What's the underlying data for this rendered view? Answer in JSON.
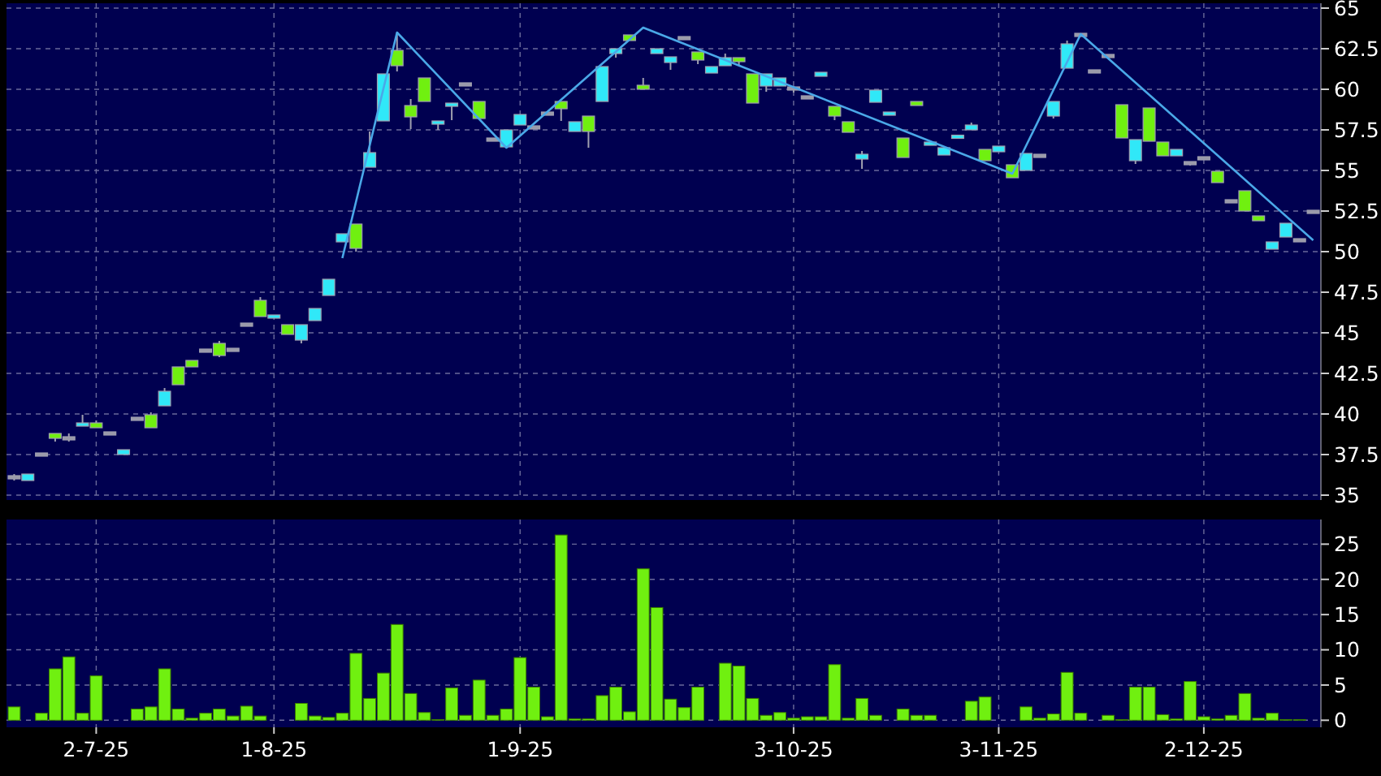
{
  "chart_data": [
    {
      "type": "candlestick",
      "categories": [
        null,
        null,
        null,
        null,
        null,
        null,
        null,
        null,
        null,
        null,
        null,
        null,
        null,
        null,
        null,
        null,
        null,
        null,
        null,
        null,
        null,
        null,
        null,
        null,
        null,
        null,
        null,
        null,
        null,
        null,
        null,
        null,
        null,
        null,
        null,
        null,
        null,
        null,
        null,
        null,
        null,
        null,
        null,
        null,
        null,
        null,
        null,
        null,
        null,
        null,
        null,
        null,
        null,
        null,
        null,
        null,
        null,
        null,
        null,
        null,
        null,
        null,
        null,
        null,
        null,
        null,
        null,
        null,
        null,
        null,
        null,
        null,
        null,
        null,
        null,
        null,
        null,
        null,
        null,
        null,
        null,
        null,
        null,
        null,
        null,
        null,
        null,
        null,
        null,
        null,
        null,
        null,
        null,
        null,
        null,
        null
      ],
      "ohlc": [
        [
          36.1,
          36.3,
          35.9,
          36.1
        ],
        [
          35.9,
          36.3,
          35.9,
          36.3
        ],
        [
          37.5,
          37.5,
          37.5,
          37.5
        ],
        [
          38.8,
          38.8,
          38.3,
          38.5
        ],
        [
          38.5,
          38.8,
          38.3,
          38.5
        ],
        [
          39.3,
          39.95,
          39.3,
          39.4
        ],
        [
          39.45,
          39.6,
          39.15,
          39.15
        ],
        [
          38.8,
          38.8,
          38.8,
          38.8
        ],
        [
          37.5,
          37.8,
          37.5,
          37.8
        ],
        [
          39.7,
          39.7,
          39.7,
          39.7
        ],
        [
          39.95,
          40.1,
          39.15,
          39.15
        ],
        [
          40.5,
          41.6,
          40.5,
          41.4
        ],
        [
          42.9,
          42.9,
          41.8,
          41.8
        ],
        [
          43.3,
          43.3,
          42.9,
          42.9
        ],
        [
          43.9,
          43.9,
          43.9,
          43.9
        ],
        [
          44.35,
          44.5,
          43.5,
          43.6
        ],
        [
          43.95,
          43.95,
          43.95,
          43.95
        ],
        [
          45.5,
          45.5,
          45.5,
          45.5
        ],
        [
          47,
          47.2,
          46,
          46
        ],
        [
          45.9,
          46.1,
          45.9,
          46.1
        ],
        [
          45.5,
          45.5,
          44.9,
          44.9
        ],
        [
          44.55,
          45.5,
          44.35,
          45.5
        ],
        [
          45.75,
          46.5,
          45.75,
          46.5
        ],
        [
          47.3,
          48.3,
          47.3,
          48.3
        ],
        [
          50.6,
          51.1,
          50.6,
          51.1
        ],
        [
          51.7,
          51.7,
          50,
          50.2
        ],
        [
          55.2,
          57.4,
          55.2,
          56.1
        ],
        [
          58.05,
          60.95,
          58.05,
          60.95
        ],
        [
          62.4,
          63.5,
          61.1,
          61.45
        ],
        [
          59,
          59.4,
          57.55,
          58.3
        ],
        [
          60.7,
          60.7,
          59.25,
          59.25
        ],
        [
          57.9,
          58,
          57.5,
          58
        ],
        [
          58.95,
          59.15,
          58.1,
          59.15
        ],
        [
          60.3,
          60.3,
          60.3,
          60.3
        ],
        [
          59.25,
          59.25,
          58.2,
          58.2
        ],
        [
          56.9,
          56.9,
          56.9,
          56.9
        ],
        [
          56.45,
          57.5,
          56.45,
          57.5
        ],
        [
          57.8,
          58.45,
          57.8,
          58.45
        ],
        [
          57.65,
          57.65,
          57.65,
          57.65
        ],
        [
          58.5,
          58.5,
          58.5,
          58.5
        ],
        [
          59.25,
          59.25,
          58.05,
          58.8
        ],
        [
          57.4,
          58,
          57.4,
          58
        ],
        [
          58.35,
          58.35,
          56.4,
          57.4
        ],
        [
          59.25,
          61.4,
          59.25,
          61.4
        ],
        [
          62.2,
          62.5,
          61.95,
          62.5
        ],
        [
          63.35,
          63.35,
          63,
          63
        ],
        [
          60.25,
          60.7,
          60,
          60
        ],
        [
          62.2,
          62.5,
          62.2,
          62.5
        ],
        [
          61.65,
          62,
          61.2,
          62
        ],
        [
          63.15,
          63.15,
          63.15,
          63.15
        ],
        [
          62.3,
          62.3,
          61.55,
          61.8
        ],
        [
          61,
          61.4,
          61,
          61.4
        ],
        [
          61.45,
          62.2,
          61.45,
          61.95
        ],
        [
          61.95,
          61.95,
          61.5,
          61.7
        ],
        [
          60.95,
          60.95,
          59.15,
          59.15
        ],
        [
          60.2,
          60.95,
          59.85,
          60.95
        ],
        [
          60.2,
          60.7,
          60.2,
          60.7
        ],
        [
          60.05,
          60.05,
          59.8,
          60.05
        ],
        [
          59.5,
          59.5,
          59.5,
          59.5
        ],
        [
          60.8,
          61.05,
          60.8,
          61.05
        ],
        [
          58.95,
          58.95,
          58.1,
          58.35
        ],
        [
          58,
          58,
          57.35,
          57.35
        ],
        [
          55.7,
          56.2,
          55.1,
          56
        ],
        [
          59.2,
          59.95,
          59.2,
          59.95
        ],
        [
          58.4,
          58.6,
          58.4,
          58.6
        ],
        [
          57,
          57,
          55.8,
          55.8
        ],
        [
          59.25,
          59.25,
          59,
          59
        ],
        [
          56.6,
          56.7,
          56.6,
          56.7
        ],
        [
          55.95,
          56.4,
          55.95,
          56.4
        ],
        [
          57,
          57.15,
          57,
          57.15
        ],
        [
          57.5,
          57.95,
          57.5,
          57.8
        ],
        [
          56.3,
          56.3,
          55.6,
          55.6
        ],
        [
          56.15,
          56.5,
          56.15,
          56.5
        ],
        [
          55.35,
          55.35,
          54.55,
          54.55
        ],
        [
          55,
          56.05,
          55,
          56.05
        ],
        [
          55.9,
          55.9,
          55.9,
          55.9
        ],
        [
          58.35,
          59.25,
          58.2,
          59.25
        ],
        [
          61.3,
          63,
          61.3,
          62.8
        ],
        [
          63.35,
          63.35,
          63.35,
          63.35
        ],
        [
          61.1,
          61.1,
          61.1,
          61.1
        ],
        [
          62.05,
          62.05,
          62.05,
          62.05
        ],
        [
          59.05,
          59.05,
          57,
          57
        ],
        [
          55.6,
          56.9,
          55.4,
          56.9
        ],
        [
          58.85,
          58.85,
          56.8,
          56.8
        ],
        [
          56.75,
          56.75,
          55.9,
          55.9
        ],
        [
          55.9,
          56.3,
          55.9,
          56.3
        ],
        [
          55.45,
          55.45,
          55.3,
          55.45
        ],
        [
          55.75,
          55.75,
          55.75,
          55.75
        ],
        [
          54.95,
          54.95,
          54.25,
          54.25
        ],
        [
          53.1,
          53.1,
          53.1,
          53.1
        ],
        [
          53.75,
          53.75,
          52.5,
          52.5
        ],
        [
          52.2,
          52.2,
          51.9,
          51.9
        ],
        [
          50.15,
          50.6,
          50.15,
          50.6
        ],
        [
          50.9,
          51.75,
          50.9,
          51.75
        ],
        [
          50.7,
          50.7,
          50.7,
          50.7
        ],
        [
          52.45,
          52.45,
          52.45,
          52.45
        ]
      ],
      "colors": [
        "#9a9aaa",
        "#30e8f8",
        "#9a9aaa",
        "#70f010",
        "#9a9aaa",
        "#30e8f8",
        "#70f010",
        "#9a9aaa",
        "#30e8f8",
        "#9a9aaa",
        "#70f010",
        "#30e8f8",
        "#70f010",
        "#70f010",
        "#9a9aaa",
        "#70f010",
        "#9a9aaa",
        "#9a9aaa",
        "#70f010",
        "#30e8f8",
        "#70f010",
        "#30e8f8",
        "#30e8f8",
        "#30e8f8",
        "#30e8f8",
        "#70f010",
        "#30e8f8",
        "#30e8f8",
        "#70f010",
        "#70f010",
        "#70f010",
        "#30e8f8",
        "#30e8f8",
        "#9a9aaa",
        "#70f010",
        "#9a9aaa",
        "#30e8f8",
        "#30e8f8",
        "#9a9aaa",
        "#9a9aaa",
        "#70f010",
        "#30e8f8",
        "#70f010",
        "#30e8f8",
        "#30e8f8",
        "#70f010",
        "#70f010",
        "#30e8f8",
        "#30e8f8",
        "#9a9aaa",
        "#70f010",
        "#30e8f8",
        "#30e8f8",
        "#70f010",
        "#70f010",
        "#30e8f8",
        "#30e8f8",
        "#9a9aaa",
        "#9a9aaa",
        "#30e8f8",
        "#70f010",
        "#70f010",
        "#30e8f8",
        "#30e8f8",
        "#30e8f8",
        "#70f010",
        "#70f010",
        "#30e8f8",
        "#30e8f8",
        "#30e8f8",
        "#30e8f8",
        "#70f010",
        "#30e8f8",
        "#70f010",
        "#30e8f8",
        "#9a9aaa",
        "#30e8f8",
        "#30e8f8",
        "#9a9aaa",
        "#9a9aaa",
        "#9a9aaa",
        "#70f010",
        "#30e8f8",
        "#70f010",
        "#70f010",
        "#30e8f8",
        "#9a9aaa",
        "#9a9aaa",
        "#70f010",
        "#9a9aaa",
        "#70f010",
        "#70f010",
        "#30e8f8",
        "#30e8f8",
        "#9a9aaa",
        "#9a9aaa"
      ],
      "series": [
        {
          "type": "line",
          "color": "#4aa8e8",
          "values": [
            null,
            null,
            null,
            null,
            null,
            null,
            null,
            null,
            null,
            null,
            null,
            null,
            null,
            null,
            null,
            null,
            null,
            null,
            null,
            null,
            null,
            null,
            null,
            null,
            49.6,
            null,
            null,
            null,
            63.5,
            null,
            null,
            null,
            null,
            null,
            null,
            null,
            56.4,
            null,
            null,
            null,
            null,
            null,
            null,
            null,
            null,
            null,
            63.8,
            null,
            null,
            null,
            null,
            null,
            null,
            null,
            null,
            null,
            null,
            null,
            null,
            null,
            null,
            null,
            null,
            null,
            null,
            null,
            null,
            null,
            null,
            null,
            null,
            null,
            null,
            54.8,
            null,
            null,
            null,
            null,
            63.4,
            null,
            null,
            null,
            null,
            null,
            null,
            null,
            null,
            null,
            null,
            null,
            null,
            null,
            null,
            null,
            null,
            50.7
          ]
        }
      ],
      "ylim": [
        34.7,
        65.3
      ],
      "yticks": [
        35,
        {
          "value": 37.5,
          "label": "37.5"
        },
        40,
        {
          "value": 42.5,
          "label": "42.5"
        },
        45,
        {
          "value": 47.5,
          "label": "47.5"
        },
        50,
        {
          "value": 52.5,
          "label": "52.5"
        },
        55,
        {
          "value": 57.5,
          "label": "57.5"
        },
        60,
        {
          "value": 62.5,
          "label": "62.5"
        },
        65
      ],
      "grid": true,
      "tick_labels": "y"
    },
    {
      "type": "bar",
      "categories": [
        null,
        null,
        null,
        null,
        null,
        null,
        "2-7-25",
        null,
        null,
        null,
        null,
        null,
        null,
        null,
        null,
        null,
        null,
        null,
        null,
        "1-8-25",
        null,
        null,
        null,
        null,
        null,
        null,
        null,
        null,
        null,
        null,
        null,
        null,
        null,
        null,
        null,
        null,
        null,
        "1-9-25",
        null,
        null,
        null,
        null,
        null,
        null,
        null,
        null,
        null,
        null,
        null,
        null,
        null,
        null,
        null,
        null,
        null,
        null,
        null,
        "3-10-25",
        null,
        null,
        null,
        null,
        null,
        null,
        null,
        null,
        null,
        null,
        null,
        null,
        null,
        null,
        "3-11-25",
        null,
        null,
        null,
        null,
        null,
        null,
        null,
        null,
        null,
        null,
        null,
        null,
        null,
        null,
        "2-12-25",
        null,
        null,
        null,
        null,
        null,
        null,
        null,
        null
      ],
      "values": [
        1.9,
        0,
        1,
        7.3,
        9,
        1,
        6.3,
        0,
        0,
        1.6,
        1.9,
        7.3,
        1.6,
        0.3,
        1,
        1.6,
        0.6,
        2,
        0.6,
        0,
        0,
        2.4,
        0.6,
        0.4,
        1,
        9.5,
        3.1,
        6.7,
        13.6,
        3.8,
        1.1,
        0.1,
        4.6,
        0.7,
        5.7,
        0.7,
        1.6,
        8.9,
        4.7,
        0.5,
        26.3,
        0.2,
        0.2,
        3.5,
        4.7,
        1.2,
        21.5,
        16,
        3,
        1.8,
        4.7,
        0,
        8.1,
        7.7,
        3.1,
        0.7,
        1.1,
        0.3,
        0.5,
        0.5,
        7.9,
        0.3,
        3.1,
        0.7,
        0,
        1.6,
        0.7,
        0.7,
        0,
        0,
        2.7,
        3.3,
        0,
        0,
        1.9,
        0.3,
        0.9,
        6.8,
        1,
        0,
        0.7,
        0.1,
        4.7,
        4.7,
        0.8,
        0.2,
        5.5,
        0.5,
        0.2,
        0.7,
        3.8,
        0.3,
        1,
        0.1,
        0.1,
        0
      ],
      "color": "#70f010",
      "ylim": [
        -1,
        28.5
      ],
      "yticks": [
        0,
        5,
        10,
        15,
        20,
        25
      ],
      "grid": true
    }
  ]
}
